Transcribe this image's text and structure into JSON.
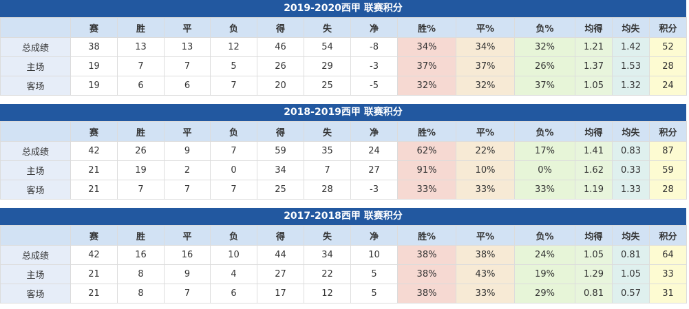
{
  "headers": [
    "",
    "赛",
    "胜",
    "平",
    "负",
    "得",
    "失",
    "净",
    "胜%",
    "平%",
    "负%",
    "均得",
    "均失",
    "积分"
  ],
  "tables": [
    {
      "title": "2019-2020西甲 联赛积分",
      "rows": [
        [
          "总成绩",
          "38",
          "13",
          "13",
          "12",
          "46",
          "54",
          "-8",
          "34%",
          "34%",
          "32%",
          "1.21",
          "1.42",
          "52"
        ],
        [
          "主场",
          "19",
          "7",
          "7",
          "5",
          "26",
          "29",
          "-3",
          "37%",
          "37%",
          "26%",
          "1.37",
          "1.53",
          "28"
        ],
        [
          "客场",
          "19",
          "6",
          "6",
          "7",
          "20",
          "25",
          "-5",
          "32%",
          "32%",
          "37%",
          "1.05",
          "1.32",
          "24"
        ]
      ]
    },
    {
      "title": "2018-2019西甲 联赛积分",
      "rows": [
        [
          "总成绩",
          "42",
          "26",
          "9",
          "7",
          "59",
          "35",
          "24",
          "62%",
          "22%",
          "17%",
          "1.41",
          "0.83",
          "87"
        ],
        [
          "主场",
          "21",
          "19",
          "2",
          "0",
          "34",
          "7",
          "27",
          "91%",
          "10%",
          "0%",
          "1.62",
          "0.33",
          "59"
        ],
        [
          "客场",
          "21",
          "7",
          "7",
          "7",
          "25",
          "28",
          "-3",
          "33%",
          "33%",
          "33%",
          "1.19",
          "1.33",
          "28"
        ]
      ]
    },
    {
      "title": "2017-2018西甲 联赛积分",
      "rows": [
        [
          "总成绩",
          "42",
          "16",
          "16",
          "10",
          "44",
          "34",
          "10",
          "38%",
          "38%",
          "24%",
          "1.05",
          "0.81",
          "64"
        ],
        [
          "主场",
          "21",
          "8",
          "9",
          "4",
          "27",
          "22",
          "5",
          "38%",
          "43%",
          "19%",
          "1.29",
          "1.05",
          "33"
        ],
        [
          "客场",
          "21",
          "8",
          "7",
          "6",
          "17",
          "12",
          "5",
          "38%",
          "33%",
          "29%",
          "0.81",
          "0.57",
          "31"
        ]
      ]
    }
  ]
}
